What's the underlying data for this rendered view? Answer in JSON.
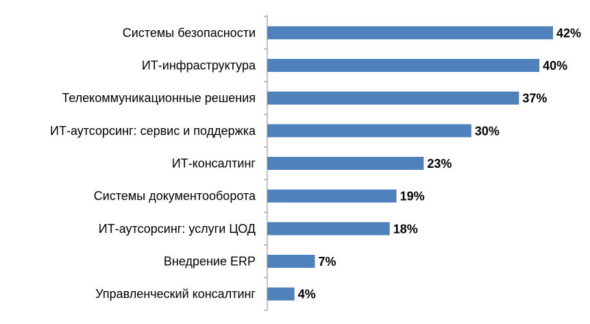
{
  "chart_data": {
    "type": "bar",
    "orientation": "horizontal",
    "categories": [
      "Системы безопасности",
      "ИТ-инфраструктура",
      "Телекоммуникационные решения",
      "ИТ-аутсорсинг: сервис и поддержка",
      "ИТ-консалтинг",
      "Системы документооборота",
      "ИТ-аутсорсинг: услуги ЦОД",
      "Внедрение ERP",
      "Управленческий консалтинг"
    ],
    "values": [
      42,
      40,
      37,
      30,
      23,
      19,
      18,
      7,
      4
    ],
    "value_labels": [
      "42%",
      "40%",
      "37%",
      "30%",
      "23%",
      "19%",
      "18%",
      "7%",
      "4%"
    ],
    "value_unit": "%",
    "bar_color": "#4f81bd",
    "axis_color": "#868686",
    "title": "",
    "xlabel": "",
    "ylabel": "",
    "xlim": [
      0,
      42
    ],
    "grid": false,
    "legend": "none"
  }
}
